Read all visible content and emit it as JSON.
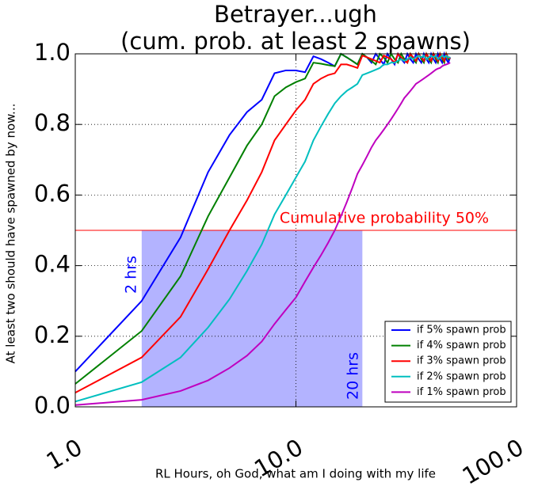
{
  "chart_data": {
    "type": "line",
    "title": "Betrayer...ugh",
    "subtitle": "(cum. prob. at least 2 spawns)",
    "x_label": "RL Hours, oh God, what am I doing with my life",
    "y_label": "At least two should have spawned by now...",
    "log_x": true,
    "grid": true,
    "legend": "lower right",
    "xlim": [
      1,
      100
    ],
    "xticks": [
      {
        "value": 1,
        "label": "1.0"
      },
      {
        "value": 10,
        "label": "10.0"
      },
      {
        "value": 100,
        "label": "100.0"
      }
    ],
    "ylim": [
      0,
      1
    ],
    "yticks": [
      {
        "value": 0,
        "label": "0.0"
      },
      {
        "value": 0.2,
        "label": "0.2"
      },
      {
        "value": 0.4,
        "label": "0.4"
      },
      {
        "value": 0.6,
        "label": "0.6"
      },
      {
        "value": 0.8,
        "label": "0.8"
      },
      {
        "value": 1,
        "label": "1.0"
      }
    ],
    "hline": {
      "value": 0.5,
      "color": "#ff0000",
      "label": "Cumulative probability 50%"
    },
    "span": {
      "x": [
        2,
        20
      ],
      "y": [
        0,
        0.5
      ],
      "color": "#b3b3ff",
      "labels": [
        "2 hrs",
        "20 hrs"
      ],
      "label_color": "#0000ff"
    },
    "x": [
      1,
      2,
      3,
      4,
      5,
      6,
      7,
      8,
      9,
      10,
      11,
      12,
      13,
      14,
      15,
      16,
      17,
      18,
      19,
      20,
      21,
      22,
      23,
      24,
      25,
      26,
      27,
      28,
      29,
      30,
      31,
      32,
      33,
      34,
      35,
      36,
      37,
      38,
      39,
      40,
      41,
      42,
      43,
      44,
      45,
      46,
      47,
      48,
      49,
      50
    ],
    "series": [
      {
        "name": "if 5% spawn prob",
        "color": "#0000ff",
        "values": [
          0.1,
          0.3,
          0.48,
          0.665,
          0.77,
          0.835,
          0.87,
          0.945,
          0.953,
          0.953,
          0.948,
          0.993,
          0.985,
          0.975,
          0.965,
          1.0,
          0.99,
          0.98,
          0.97,
          1.0,
          0.99,
          0.975,
          1.0,
          0.985,
          0.97,
          1.0,
          0.985,
          0.97,
          1.0,
          0.985,
          0.975,
          1.0,
          0.985,
          0.975,
          1.0,
          0.985,
          0.975,
          1.0,
          0.985,
          0.975,
          1.0,
          0.985,
          0.975,
          1.0,
          0.985,
          0.975,
          1.0,
          0.985,
          0.975,
          0.99
        ]
      },
      {
        "name": "if 4% spawn prob",
        "color": "#008000",
        "values": [
          0.065,
          0.215,
          0.37,
          0.54,
          0.65,
          0.74,
          0.8,
          0.88,
          0.905,
          0.92,
          0.93,
          0.975,
          0.972,
          0.968,
          0.965,
          1.0,
          0.99,
          0.98,
          0.97,
          1.0,
          0.99,
          0.98,
          0.97,
          1.0,
          0.99,
          0.975,
          1.0,
          0.985,
          0.975,
          1.0,
          0.985,
          0.975,
          1.0,
          0.985,
          0.975,
          1.0,
          0.985,
          0.975,
          1.0,
          0.985,
          0.975,
          1.0,
          0.985,
          0.975,
          1.0,
          0.985,
          0.975,
          1.0,
          0.985,
          0.99
        ]
      },
      {
        "name": "if 3% spawn prob",
        "color": "#ff0000",
        "values": [
          0.04,
          0.14,
          0.255,
          0.39,
          0.5,
          0.585,
          0.665,
          0.755,
          0.8,
          0.84,
          0.87,
          0.915,
          0.93,
          0.94,
          0.945,
          0.97,
          0.97,
          0.965,
          0.96,
          0.995,
          0.99,
          0.985,
          0.98,
          0.975,
          0.995,
          0.99,
          0.985,
          0.975,
          1.0,
          0.99,
          0.98,
          0.975,
          1.0,
          0.99,
          0.98,
          1.0,
          0.99,
          0.98,
          1.0,
          0.99,
          0.98,
          1.0,
          0.99,
          0.98,
          1.0,
          0.99,
          0.98,
          1.0,
          0.99,
          0.985
        ]
      },
      {
        "name": "if 2% spawn prob",
        "color": "#00bfbf",
        "values": [
          0.015,
          0.07,
          0.14,
          0.225,
          0.305,
          0.385,
          0.46,
          0.545,
          0.6,
          0.65,
          0.695,
          0.755,
          0.795,
          0.83,
          0.86,
          0.88,
          0.895,
          0.905,
          0.915,
          0.94,
          0.945,
          0.95,
          0.955,
          0.96,
          0.97,
          0.97,
          0.975,
          0.975,
          0.98,
          0.985,
          0.98,
          0.985,
          0.99,
          0.985,
          0.99,
          0.995,
          0.99,
          0.995,
          0.985,
          0.99,
          0.995,
          0.99,
          0.995,
          0.985,
          0.99,
          0.995,
          0.99,
          0.995,
          0.99,
          0.99
        ]
      },
      {
        "name": "if 1% spawn prob",
        "color": "#bf00bf",
        "values": [
          0.005,
          0.02,
          0.045,
          0.075,
          0.11,
          0.145,
          0.185,
          0.235,
          0.275,
          0.31,
          0.355,
          0.395,
          0.43,
          0.465,
          0.5,
          0.54,
          0.58,
          0.62,
          0.66,
          0.685,
          0.71,
          0.735,
          0.755,
          0.77,
          0.785,
          0.8,
          0.815,
          0.83,
          0.845,
          0.86,
          0.875,
          0.885,
          0.895,
          0.905,
          0.915,
          0.92,
          0.925,
          0.93,
          0.935,
          0.94,
          0.945,
          0.95,
          0.955,
          0.958,
          0.96,
          0.965,
          0.968,
          0.97,
          0.972,
          0.975
        ]
      }
    ]
  }
}
